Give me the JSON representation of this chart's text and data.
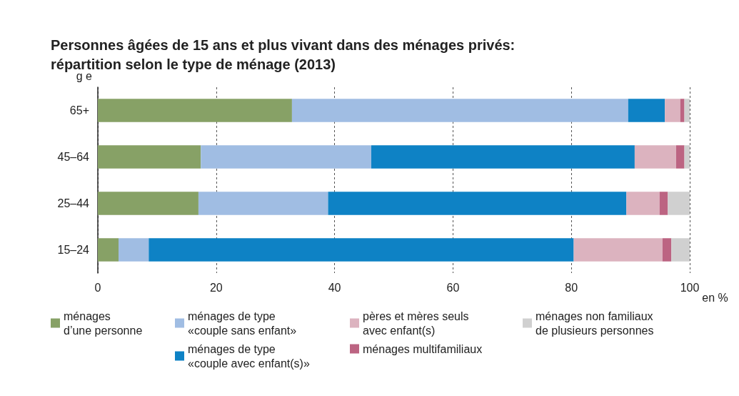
{
  "chart_data": {
    "type": "bar",
    "orientation": "horizontal",
    "stacked": true,
    "title": "Personnes âgées de 15 ans et plus vivant dans des ménages privés:\nrépartition selon le type de ménage (2013)",
    "ylabel": "g e",
    "xlabel": "en %",
    "categories": [
      "65+",
      "45–64",
      "25–44",
      "15–24"
    ],
    "series": [
      {
        "name": "ménages\nd’une personne",
        "color": "#87a166",
        "values": [
          32.8,
          17.4,
          17.0,
          3.5
        ]
      },
      {
        "name": "ménages de type\n«couple sans enfant»",
        "color": "#a0bde3",
        "values": [
          56.8,
          28.8,
          21.9,
          5.1
        ]
      },
      {
        "name": "ménages de type\n«couple avec enfant(s)»",
        "color": "#0e82c5",
        "values": [
          6.2,
          44.5,
          50.4,
          71.8
        ]
      },
      {
        "name": "pères et mères seuls\navec enfant(s)",
        "color": "#dcb3bf",
        "values": [
          2.6,
          7.0,
          5.6,
          15.0
        ]
      },
      {
        "name": "ménages multifamiliaux",
        "color": "#bc6482",
        "values": [
          0.7,
          1.4,
          1.4,
          1.5
        ]
      },
      {
        "name": "ménages non familiaux\nde plusieurs personnes",
        "color": "#d0d0d0",
        "values": [
          0.9,
          0.9,
          3.7,
          3.1
        ]
      }
    ],
    "xlim": [
      0,
      100
    ],
    "xticks": [
      0,
      20,
      40,
      60,
      80,
      100
    ],
    "grid": "x",
    "legend": "bottom"
  }
}
